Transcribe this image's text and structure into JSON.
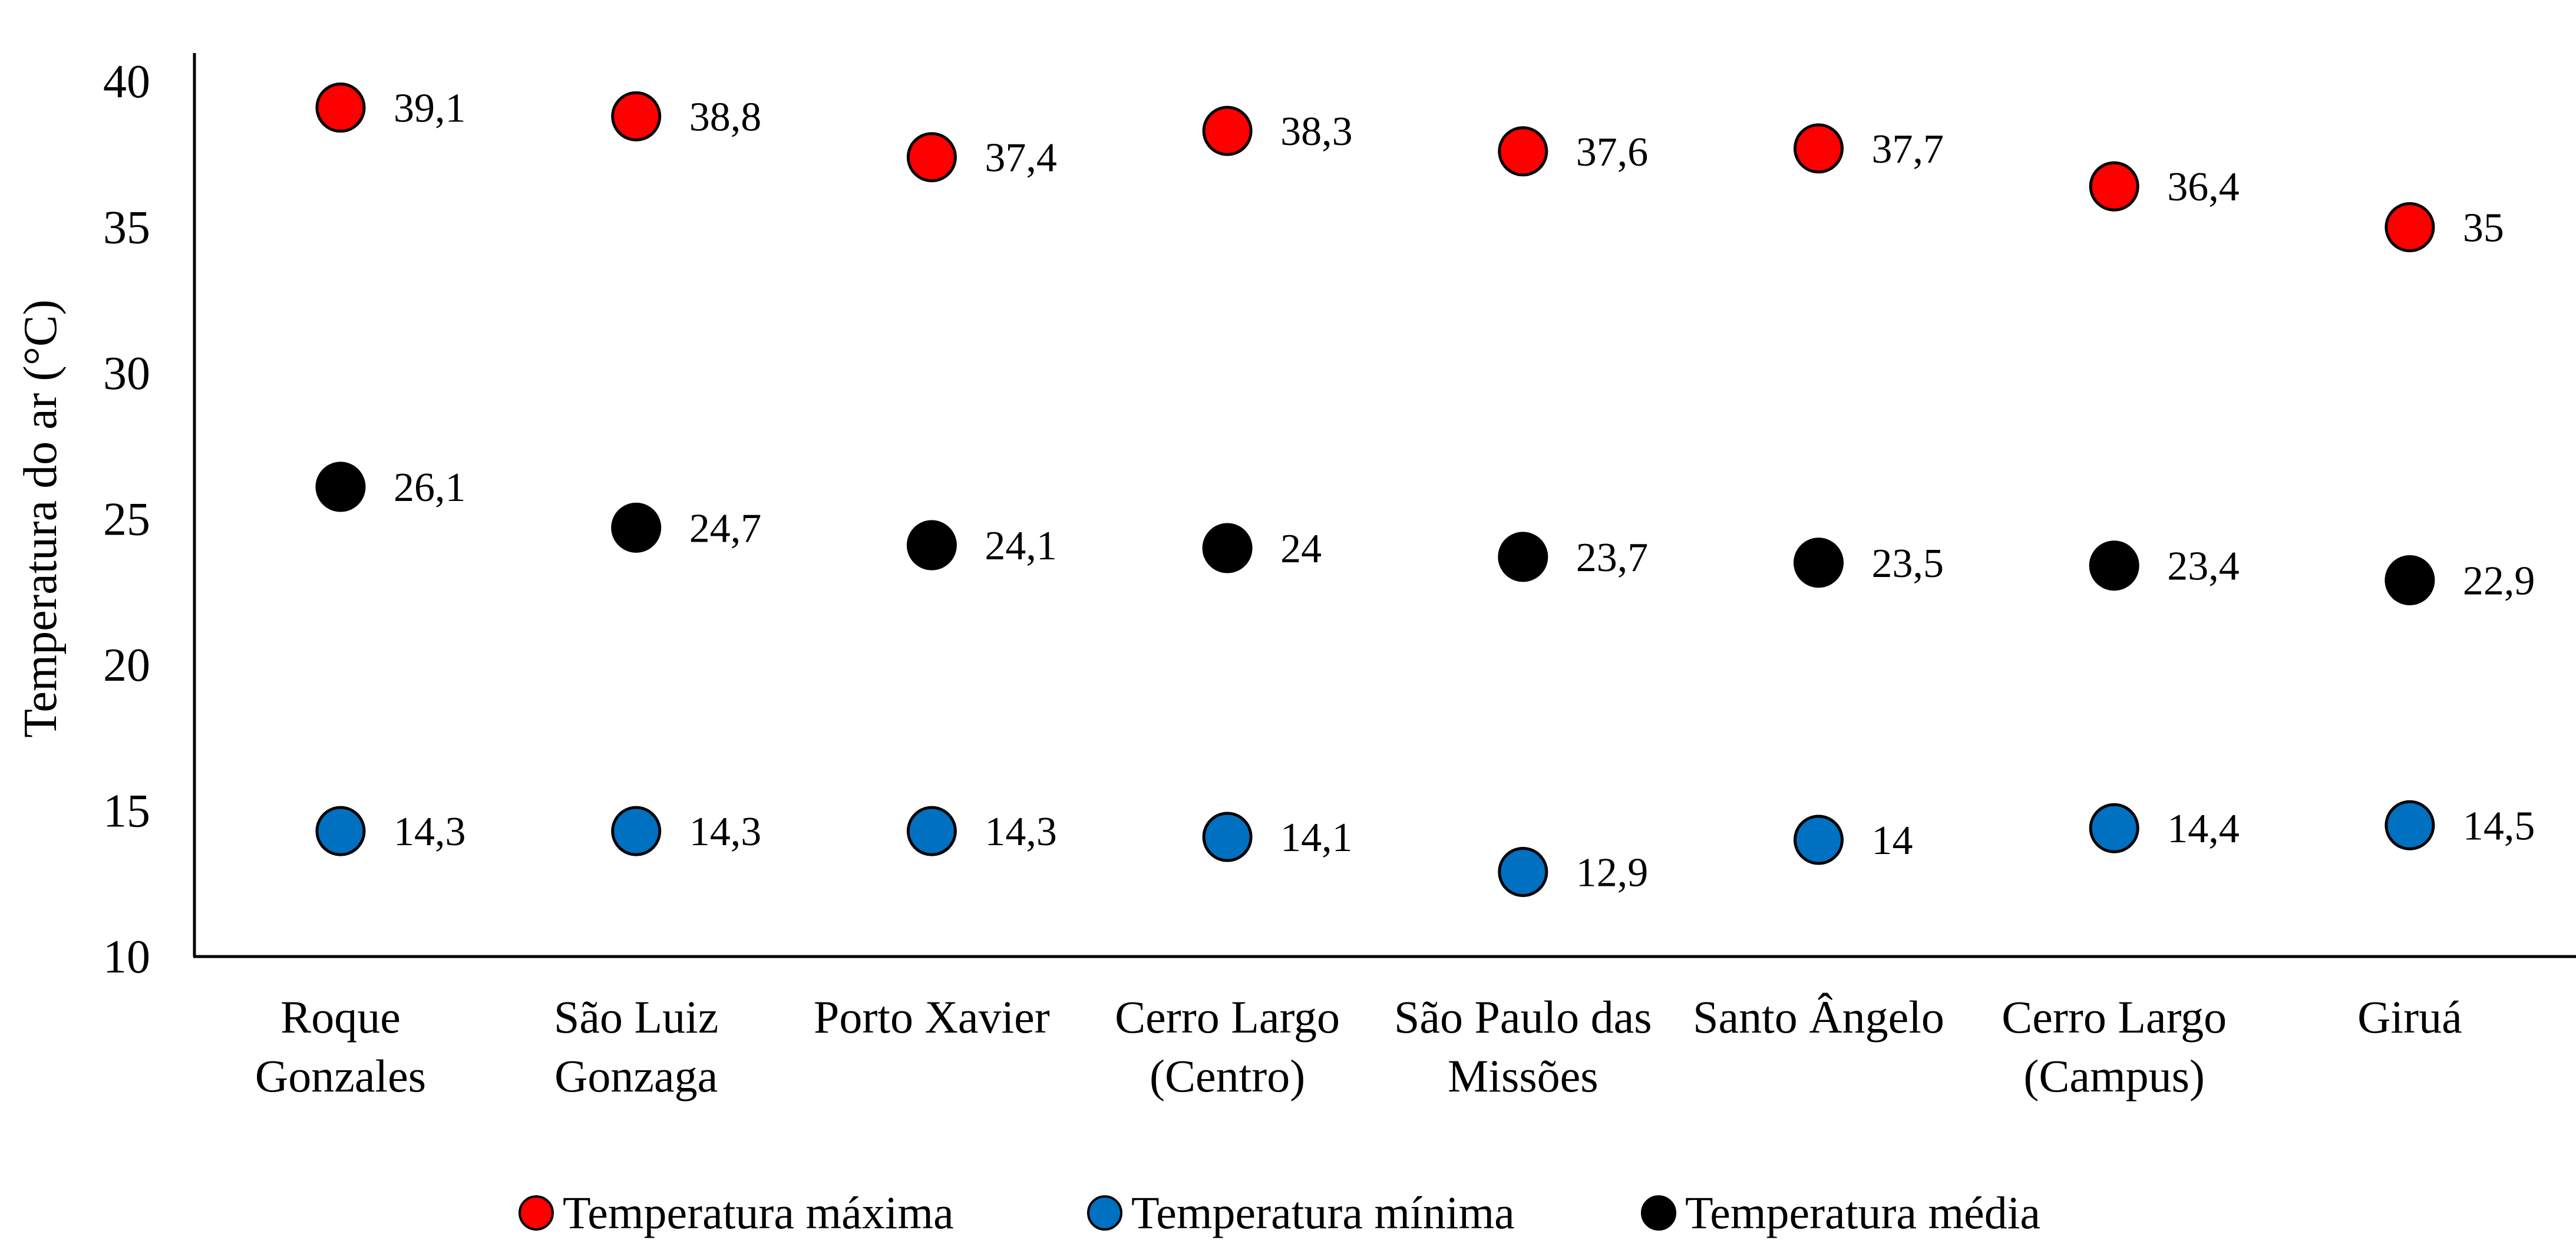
{
  "chart_data": {
    "type": "scatter",
    "title": "",
    "xlabel": "",
    "ylabel": "Temperatura do ar (°C)",
    "ylim": [
      10,
      40
    ],
    "yticks": [
      "10",
      "15",
      "20",
      "25",
      "30",
      "35",
      "40"
    ],
    "grid": false,
    "legend_position": "bottom",
    "categories": [
      [
        "Roque",
        "Gonzales"
      ],
      [
        "São Luiz",
        "Gonzaga"
      ],
      [
        "Porto Xavier"
      ],
      [
        "Cerro Largo",
        "(Centro)"
      ],
      [
        "São Paulo das",
        "Missões"
      ],
      [
        "Santo Ângelo"
      ],
      [
        "Cerro Largo",
        "(Campus)"
      ],
      [
        "Giruá"
      ]
    ],
    "series": [
      {
        "name": "Temperatura máxima",
        "color": "#ff0000",
        "values": [
          39.1,
          38.8,
          37.4,
          38.3,
          37.6,
          37.7,
          36.4,
          35
        ],
        "labels": [
          "39,1",
          "38,8",
          "37,4",
          "38,3",
          "37,6",
          "37,7",
          "36,4",
          "35"
        ]
      },
      {
        "name": "Temperatura mínima",
        "color": "#0070c0",
        "values": [
          14.3,
          14.3,
          14.3,
          14.1,
          12.9,
          14,
          14.4,
          14.5
        ],
        "labels": [
          "14,3",
          "14,3",
          "14,3",
          "14,1",
          "12,9",
          "14",
          "14,4",
          "14,5"
        ]
      },
      {
        "name": "Temperatura média",
        "color": "#000000",
        "values": [
          26.1,
          24.7,
          24.1,
          24,
          23.7,
          23.5,
          23.4,
          22.9
        ],
        "labels": [
          "26,1",
          "24,7",
          "24,1",
          "24",
          "23,7",
          "23,5",
          "23,4",
          "22,9"
        ]
      }
    ]
  }
}
